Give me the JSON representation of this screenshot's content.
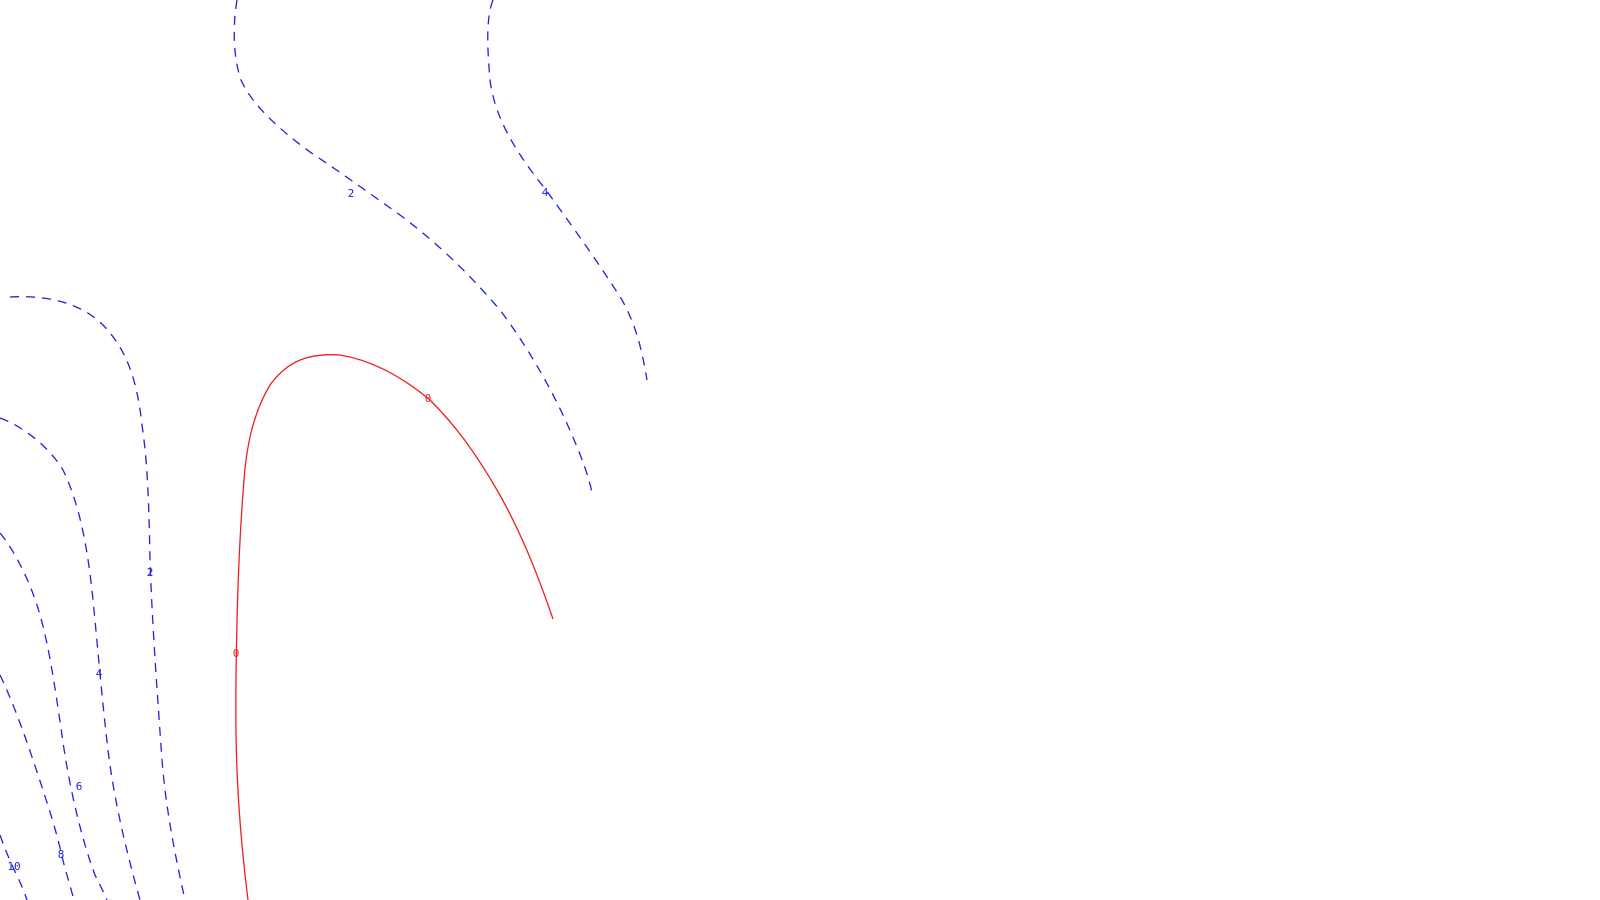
{
  "colors": {
    "background": "#ffffff",
    "positive_contour": "#2020e0",
    "zero_contour": "#ee2020"
  },
  "contours": [
    {
      "id": "c-2-top",
      "level": 2,
      "style": "dashed",
      "color_key": "positive_contour",
      "label": "2"
    },
    {
      "id": "c-4-top",
      "level": 4,
      "style": "dashed",
      "color_key": "positive_contour",
      "label": "4"
    },
    {
      "id": "c-2-left",
      "level": 2,
      "style": "dashed",
      "color_key": "positive_contour",
      "label": "2"
    },
    {
      "id": "c-4-left",
      "level": 4,
      "style": "dashed",
      "color_key": "positive_contour",
      "label": "4"
    },
    {
      "id": "c-6-left",
      "level": 6,
      "style": "dashed",
      "color_key": "positive_contour",
      "label": "6"
    },
    {
      "id": "c-8-left",
      "level": 8,
      "style": "dashed",
      "color_key": "positive_contour",
      "label": "8"
    },
    {
      "id": "c-10-left",
      "level": 10,
      "style": "dashed",
      "color_key": "positive_contour",
      "label": "10"
    },
    {
      "id": "c-0",
      "level": 0,
      "style": "solid",
      "color_key": "zero_contour",
      "label": "0"
    }
  ]
}
